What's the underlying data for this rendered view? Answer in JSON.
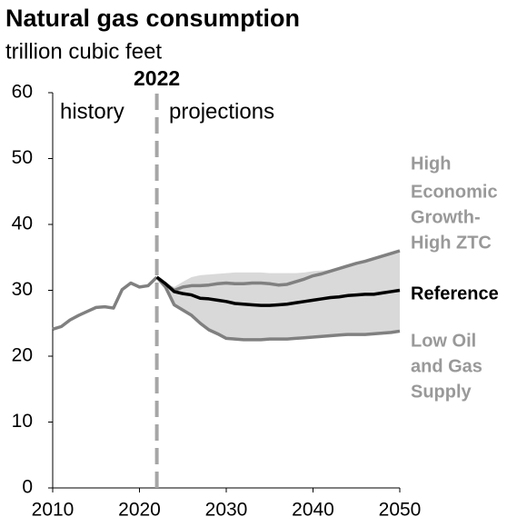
{
  "chart_data": {
    "type": "line",
    "title": "Natural gas consumption",
    "subtitle": "trillion cubic feet",
    "xlim": [
      2010,
      2050
    ],
    "xticks": [
      2010,
      2020,
      2030,
      2040,
      2050
    ],
    "ylim": [
      0,
      60
    ],
    "yticks": [
      0,
      10,
      20,
      30,
      40,
      50,
      60
    ],
    "divider": {
      "x": 2022,
      "label": "2022",
      "color": "#a6a6a6"
    },
    "annotations": {
      "left": "history",
      "right": "projections"
    },
    "band": {
      "color": "#d9d9d9",
      "x": [
        2022,
        2023,
        2024,
        2025,
        2026,
        2027,
        2028,
        2029,
        2030,
        2031,
        2032,
        2033,
        2034,
        2035,
        2036,
        2037,
        2038,
        2039,
        2040,
        2041,
        2042,
        2043,
        2044,
        2045,
        2046,
        2047,
        2048,
        2049,
        2050
      ],
      "upper": [
        32.0,
        31.0,
        30.5,
        31.3,
        32.0,
        32.3,
        32.4,
        32.5,
        32.6,
        32.7,
        32.7,
        32.7,
        32.7,
        32.6,
        32.6,
        32.6,
        32.6,
        32.7,
        32.9,
        33.0,
        33.1,
        33.3,
        33.7,
        34.1,
        34.4,
        34.8,
        35.2,
        35.6,
        36.0
      ],
      "lower": [
        32.0,
        30.5,
        27.8,
        27.0,
        26.2,
        25.0,
        24.0,
        23.4,
        22.7,
        22.6,
        22.5,
        22.5,
        22.5,
        22.6,
        22.6,
        22.6,
        22.7,
        22.8,
        22.9,
        23.0,
        23.1,
        23.2,
        23.3,
        23.3,
        23.3,
        23.4,
        23.5,
        23.6,
        23.8
      ]
    },
    "series": [
      {
        "color": "#808080",
        "x": [
          2010,
          2011,
          2012,
          2013,
          2014,
          2015,
          2016,
          2017,
          2018,
          2019,
          2020,
          2021,
          2022
        ],
        "values": [
          24.1,
          24.5,
          25.5,
          26.2,
          26.8,
          27.4,
          27.5,
          27.3,
          30.1,
          31.1,
          30.5,
          30.7,
          32.0
        ]
      },
      {
        "name_lines": [
          "High",
          "Economic",
          "Growth-",
          "High ZTC"
        ],
        "color": "#808080",
        "label_color": "#999999",
        "x": [
          2022,
          2023,
          2024,
          2025,
          2026,
          2027,
          2028,
          2029,
          2030,
          2031,
          2032,
          2033,
          2034,
          2035,
          2036,
          2037,
          2038,
          2039,
          2040,
          2041,
          2042,
          2043,
          2044,
          2045,
          2046,
          2047,
          2048,
          2049,
          2050
        ],
        "values": [
          32.0,
          31.0,
          30.0,
          30.5,
          30.7,
          30.7,
          30.8,
          31.0,
          31.1,
          31.0,
          31.0,
          31.1,
          31.1,
          31.0,
          30.8,
          30.9,
          31.3,
          31.7,
          32.2,
          32.5,
          32.9,
          33.3,
          33.7,
          34.1,
          34.4,
          34.8,
          35.2,
          35.6,
          36.0
        ]
      },
      {
        "name_lines": [
          "Low Oil",
          "and Gas",
          "Supply"
        ],
        "color": "#808080",
        "label_color": "#999999",
        "x": [
          2022,
          2023,
          2024,
          2025,
          2026,
          2027,
          2028,
          2029,
          2030,
          2031,
          2032,
          2033,
          2034,
          2035,
          2036,
          2037,
          2038,
          2039,
          2040,
          2041,
          2042,
          2043,
          2044,
          2045,
          2046,
          2047,
          2048,
          2049,
          2050
        ],
        "values": [
          32.0,
          30.5,
          27.8,
          27.0,
          26.2,
          25.0,
          24.0,
          23.4,
          22.7,
          22.6,
          22.5,
          22.5,
          22.5,
          22.6,
          22.6,
          22.6,
          22.7,
          22.8,
          22.9,
          23.0,
          23.1,
          23.2,
          23.3,
          23.3,
          23.3,
          23.4,
          23.5,
          23.6,
          23.8
        ]
      },
      {
        "name_lines": [
          "Reference"
        ],
        "color": "#000000",
        "label_color": "#000000",
        "x": [
          2022,
          2023,
          2024,
          2025,
          2026,
          2027,
          2028,
          2029,
          2030,
          2031,
          2032,
          2033,
          2034,
          2035,
          2036,
          2037,
          2038,
          2039,
          2040,
          2041,
          2042,
          2043,
          2044,
          2045,
          2046,
          2047,
          2048,
          2049,
          2050
        ],
        "values": [
          32.0,
          31.0,
          29.8,
          29.5,
          29.3,
          28.8,
          28.7,
          28.5,
          28.3,
          28.0,
          27.9,
          27.8,
          27.7,
          27.7,
          27.8,
          27.9,
          28.1,
          28.3,
          28.5,
          28.7,
          28.9,
          29.0,
          29.2,
          29.3,
          29.4,
          29.4,
          29.6,
          29.8,
          30.0
        ]
      }
    ]
  }
}
